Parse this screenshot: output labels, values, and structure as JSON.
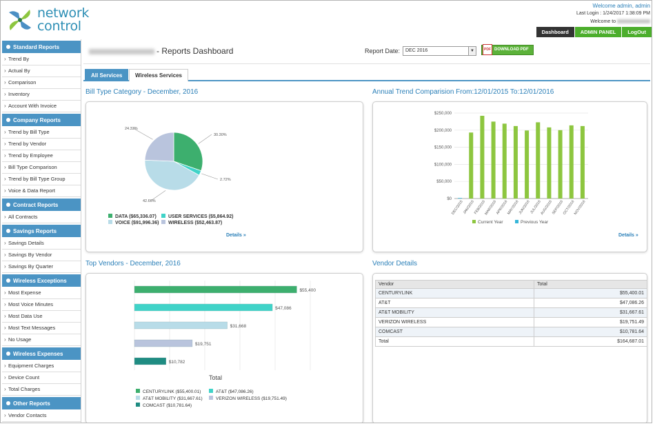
{
  "header": {
    "brand_line1": "network",
    "brand_line2": "control",
    "welcome_prefix": "Welcome admin, admin",
    "last_login": "Last Login : 1/24/2017 1:38:09 PM",
    "welcome_to": "Welcome to",
    "nav": [
      {
        "label": "Dashboard",
        "style": "dark"
      },
      {
        "label": "ADMIN PANEL",
        "style": "green"
      },
      {
        "label": "LogOut",
        "style": "green"
      }
    ]
  },
  "sidebar": [
    {
      "title": "Standard Reports",
      "items": [
        "Trend By",
        "Actual By",
        "Comparison",
        "Inventory",
        "Account With Invoice"
      ]
    },
    {
      "title": "Company Reports",
      "items": [
        "Trend by Bill Type",
        "Trend by Vendor",
        "Trend by Employee",
        "Bill Type Comparison",
        "Trend by Bill Type Group",
        "Voice & Data Report"
      ]
    },
    {
      "title": "Contract Reports",
      "items": [
        "All Contracts"
      ]
    },
    {
      "title": "Savings Reports",
      "items": [
        "Savings Details",
        "Savings By Vendor",
        "Savings By Quarter"
      ]
    },
    {
      "title": "Wireless Exceptions",
      "items": [
        "Most Expense",
        "Most Voice Minutes",
        "Most Data Use",
        "Most Text Messages",
        "No Usage"
      ]
    },
    {
      "title": "Wireless Expenses",
      "items": [
        "Equipment Charges",
        "Device Count",
        "Total Charges"
      ]
    },
    {
      "title": "Other Reports",
      "items": [
        "Vendor Contacts"
      ]
    }
  ],
  "main": {
    "page_title": "- Reports Dashboard",
    "report_date_label": "Report Date:",
    "report_date_value": "DEC 2016",
    "download_label": "DOWNLOAD PDF",
    "pdf_icon_text": "PDF",
    "tabs": [
      "All Services",
      "Wireless Services"
    ],
    "details_label": "Details »",
    "panels": {
      "bill_type_title": "Bill Type Category - December, 2016",
      "annual_title": "Annual Trend Comparision From:12/01/2015 To:12/01/2016",
      "vendors_title": "Top Vendors - December, 2016",
      "vendor_details_title": "Vendor Details"
    }
  },
  "vendor_table": {
    "headers": [
      "Vendor",
      "Total"
    ],
    "rows": [
      [
        "CENTURYLINK",
        "$55,400.01"
      ],
      [
        "AT&T",
        "$47,086.26"
      ],
      [
        "AT&T MOBILITY",
        "$31,667.61"
      ],
      [
        "VERIZON WIRELESS",
        "$19,751.49"
      ],
      [
        "COMCAST",
        "$10,781.64"
      ],
      [
        "Total",
        "$164,687.01"
      ]
    ]
  },
  "chart_data": [
    {
      "type": "pie",
      "title": "Bill Type Category - December, 2016",
      "slices": [
        {
          "label": "DATA ($65,336.07)",
          "value": 65336.07,
          "pct_label": "30.30%",
          "color": "#3daf6e"
        },
        {
          "label": "USER SERVICES ($5,864.92)",
          "value": 5864.92,
          "pct_label": "2.72%",
          "color": "#40d3c8"
        },
        {
          "label": "VOICE ($91,996.36)",
          "value": 91996.36,
          "pct_label": "42.66%",
          "color": "#b8dce8"
        },
        {
          "label": "WIRELESS ($52,463.87)",
          "value": 52463.87,
          "pct_label": "24.33%",
          "color": "#b9c4dd"
        }
      ]
    },
    {
      "type": "bar",
      "title": "Annual Trend Comparision From:12/01/2015 To:12/01/2016",
      "categories": [
        "DEC/2015",
        "JAN/2016",
        "FEB/2016",
        "MAR/2016",
        "APR/2016",
        "MAY/2016",
        "JUN/2016",
        "JUL/2016",
        "AUG/2016",
        "SEP/2016",
        "OCT/2016",
        "NOV/2016"
      ],
      "series": [
        {
          "name": "Current Year",
          "color": "#8dc63f",
          "values": [
            0,
            193000,
            242000,
            225000,
            219000,
            212000,
            199000,
            223000,
            208000,
            200000,
            214000,
            212000
          ]
        },
        {
          "name": "Previous Year",
          "color": "#36b6d9",
          "values": [
            0,
            0,
            0,
            0,
            0,
            0,
            0,
            0,
            0,
            0,
            0,
            0
          ]
        }
      ],
      "yticks": [
        "$250,000",
        "$200,000",
        "$150,000",
        "$100,000",
        "$50,000",
        "$0"
      ],
      "ylim": [
        0,
        250000
      ]
    },
    {
      "type": "bar",
      "orientation": "horizontal",
      "title": "Top Vendors - December, 2016",
      "xlabel": "Total",
      "categories": [
        "CENTURYLINK ($55,400.01)",
        "AT&T ($47,086.26)",
        "AT&T MOBILITY ($31,667.61)",
        "VERIZON WIRELESS ($19,751.49)",
        "COMCAST ($10,781.64)"
      ],
      "values": [
        55400.01,
        47086.26,
        31667.61,
        19751.49,
        10781.64
      ],
      "value_labels": [
        "$55,400",
        "$47,086",
        "$31,668",
        "$19,751",
        "$10,782"
      ],
      "colors": [
        "#3daf6e",
        "#40d3c8",
        "#b8dce8",
        "#b9c4dd",
        "#1f8c82"
      ],
      "xlim": [
        0,
        60000
      ]
    }
  ]
}
